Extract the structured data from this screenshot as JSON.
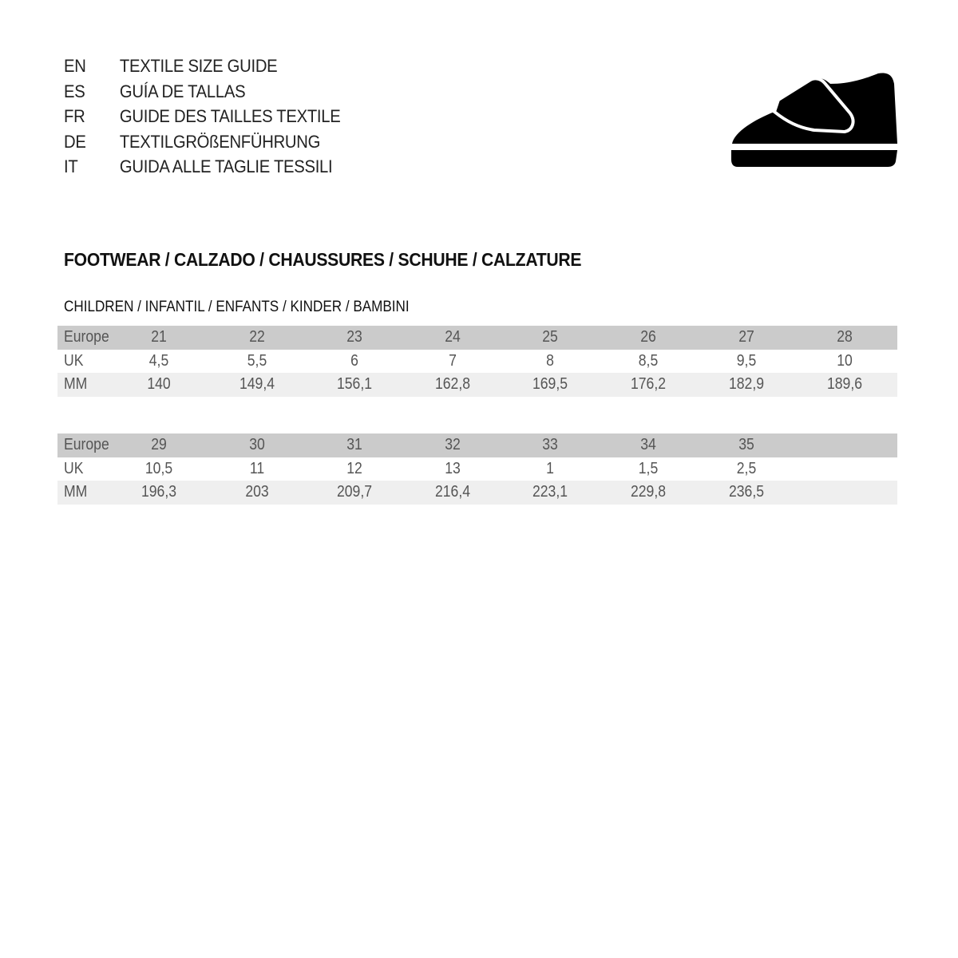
{
  "guide_titles": [
    {
      "code": "EN",
      "title": "TEXTILE SIZE GUIDE"
    },
    {
      "code": "ES",
      "title": "GUÍA DE TALLAS"
    },
    {
      "code": "FR",
      "title": "GUIDE DES TAILLES TEXTILE"
    },
    {
      "code": "DE",
      "title": "TEXTILGRÖßENFÜHRUNG"
    },
    {
      "code": "IT",
      "title": "GUIDA ALLE TAGLIE TESSILI"
    }
  ],
  "icon": "children-velcro-shoe-icon",
  "section_title": "FOOTWEAR / CALZADO / CHAUSSURES / SCHUHE / CALZATURE",
  "sub_title": "CHILDREN / INFANTIL / ENFANTS / KINDER / BAMBINI",
  "colors": {
    "header_row": "#cbcbcb",
    "mm_row": "#efefef"
  },
  "tables": [
    {
      "rows": [
        {
          "label": "Europe",
          "values": [
            "21",
            "22",
            "23",
            "24",
            "25",
            "26",
            "27",
            "28"
          ]
        },
        {
          "label": "UK",
          "values": [
            "4,5",
            "5,5",
            "6",
            "7",
            "8",
            "8,5",
            "9,5",
            "10"
          ]
        },
        {
          "label": "MM",
          "values": [
            "140",
            "149,4",
            "156,1",
            "162,8",
            "169,5",
            "176,2",
            "182,9",
            "189,6"
          ]
        }
      ]
    },
    {
      "rows": [
        {
          "label": "Europe",
          "values": [
            "29",
            "30",
            "31",
            "32",
            "33",
            "34",
            "35"
          ]
        },
        {
          "label": "UK",
          "values": [
            "10,5",
            "11",
            "12",
            "13",
            "1",
            "1,5",
            "2,5"
          ]
        },
        {
          "label": "MM",
          "values": [
            "196,3",
            "203",
            "209,7",
            "216,4",
            "223,1",
            "229,8",
            "236,5"
          ]
        }
      ]
    }
  ]
}
